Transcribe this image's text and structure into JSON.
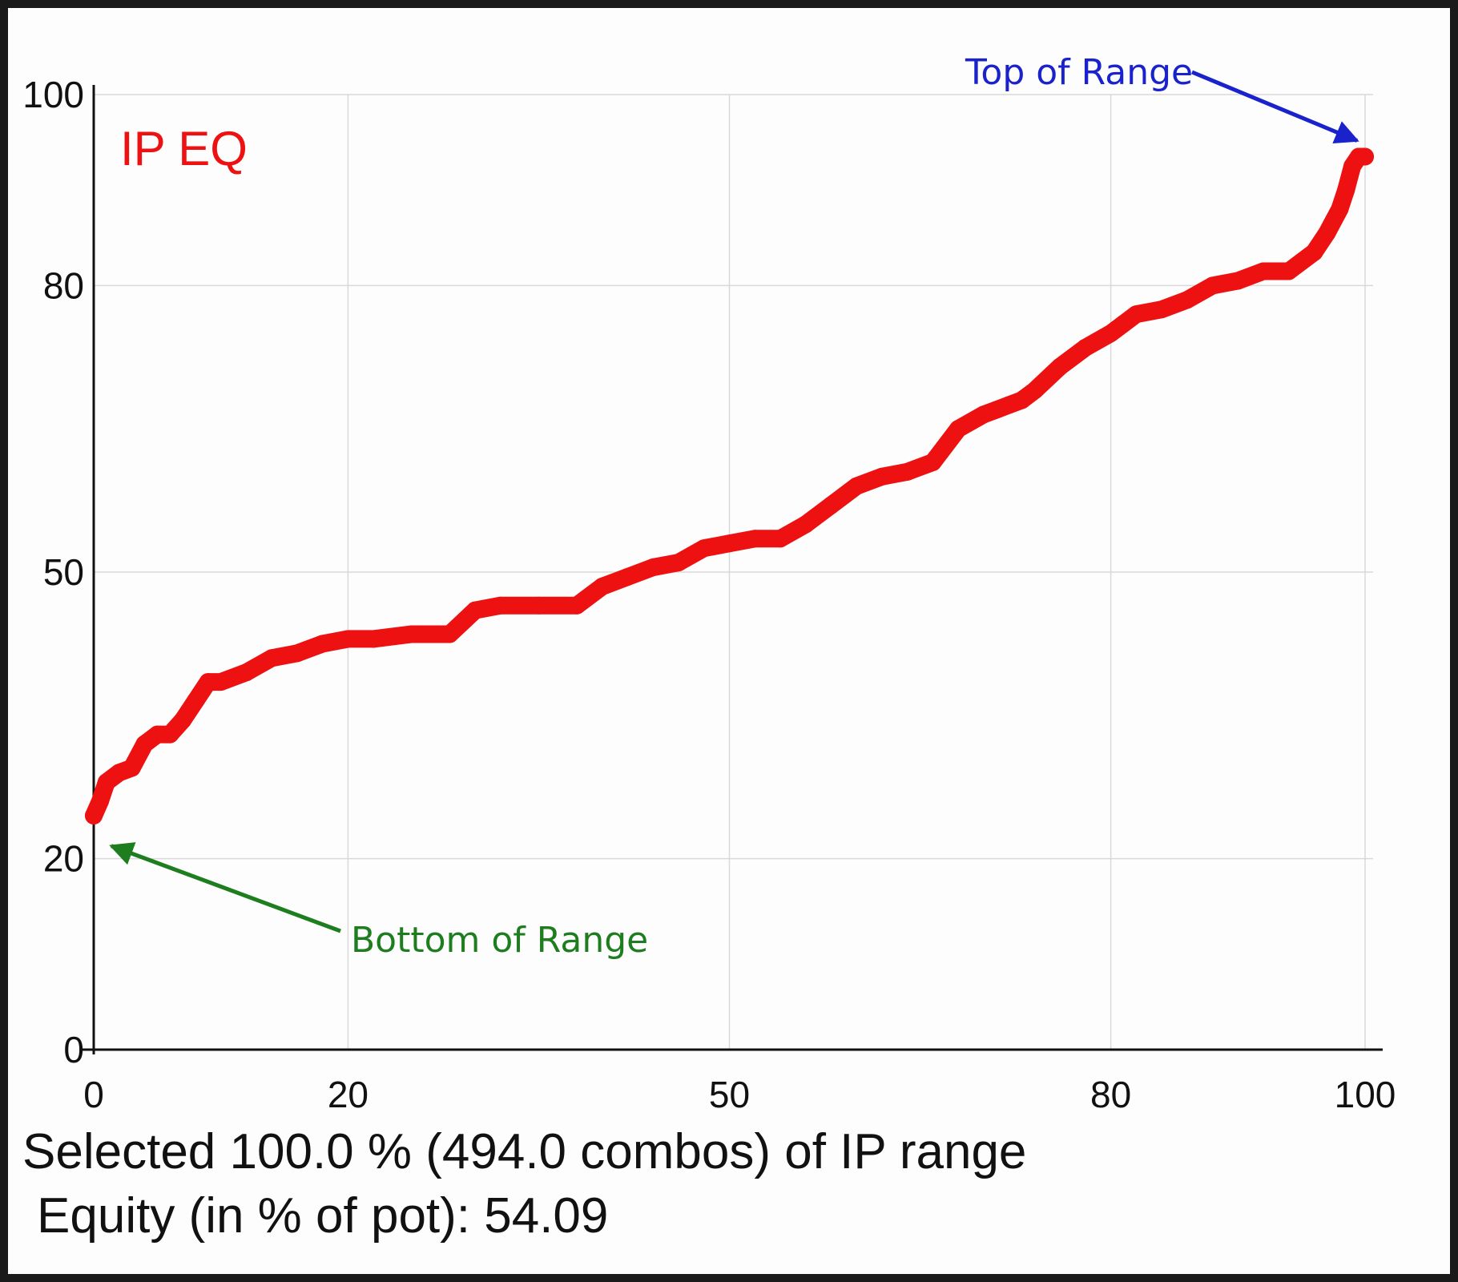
{
  "chart_data": {
    "type": "line",
    "title": "IP EQ",
    "xlabel": "",
    "ylabel": "",
    "xlim": [
      0,
      100
    ],
    "ylim": [
      0,
      100
    ],
    "x_ticks": [
      0,
      20,
      50,
      80,
      100
    ],
    "y_ticks": [
      0,
      20,
      50,
      80,
      100
    ],
    "grid": true,
    "colors": {
      "line": "#ee1111",
      "top_annotation": "#1a22cc",
      "bottom_annotation": "#1e7d1e"
    },
    "annotations": [
      {
        "text": "Top of Range",
        "target": [
          100,
          94
        ],
        "color": "top_annotation"
      },
      {
        "text": "Bottom of Range",
        "target": [
          0,
          22
        ],
        "color": "bottom_annotation"
      }
    ],
    "series": [
      {
        "x": [
          0,
          0.5,
          1,
          2,
          3,
          4,
          5,
          6,
          7,
          8,
          9,
          10,
          12,
          14,
          16,
          18,
          20,
          22,
          25,
          28,
          30,
          32,
          35,
          38,
          40,
          42,
          44,
          46,
          48,
          50,
          52,
          54,
          56,
          58,
          60,
          62,
          64,
          66,
          68,
          70,
          71,
          72,
          73,
          74,
          76,
          78,
          80,
          81,
          82,
          84,
          86,
          88,
          90,
          92,
          94,
          96,
          97,
          98,
          98.5,
          99,
          99.5,
          100
        ],
        "y": [
          24.5,
          26,
          28,
          29,
          29.5,
          32,
          33,
          33,
          34.5,
          36.5,
          38.5,
          38.5,
          39.5,
          41,
          41.5,
          42.5,
          43,
          43,
          43.5,
          43.5,
          46,
          46.5,
          46.5,
          46.5,
          48.5,
          49.5,
          50.5,
          51,
          52.5,
          53,
          53.5,
          53.5,
          55,
          57,
          59,
          60,
          60.5,
          61.5,
          65,
          66.5,
          67,
          67.5,
          68,
          69,
          71.5,
          73.5,
          75,
          76,
          77,
          77.5,
          78.5,
          80,
          80.5,
          81.5,
          81.5,
          83.5,
          85.5,
          88,
          90,
          92.5,
          93.5,
          93.5
        ]
      }
    ]
  },
  "summary": {
    "line1": "Selected 100.0 % (494.0 combos) of IP range",
    "line2": "Equity (in % of pot): 54.09"
  }
}
